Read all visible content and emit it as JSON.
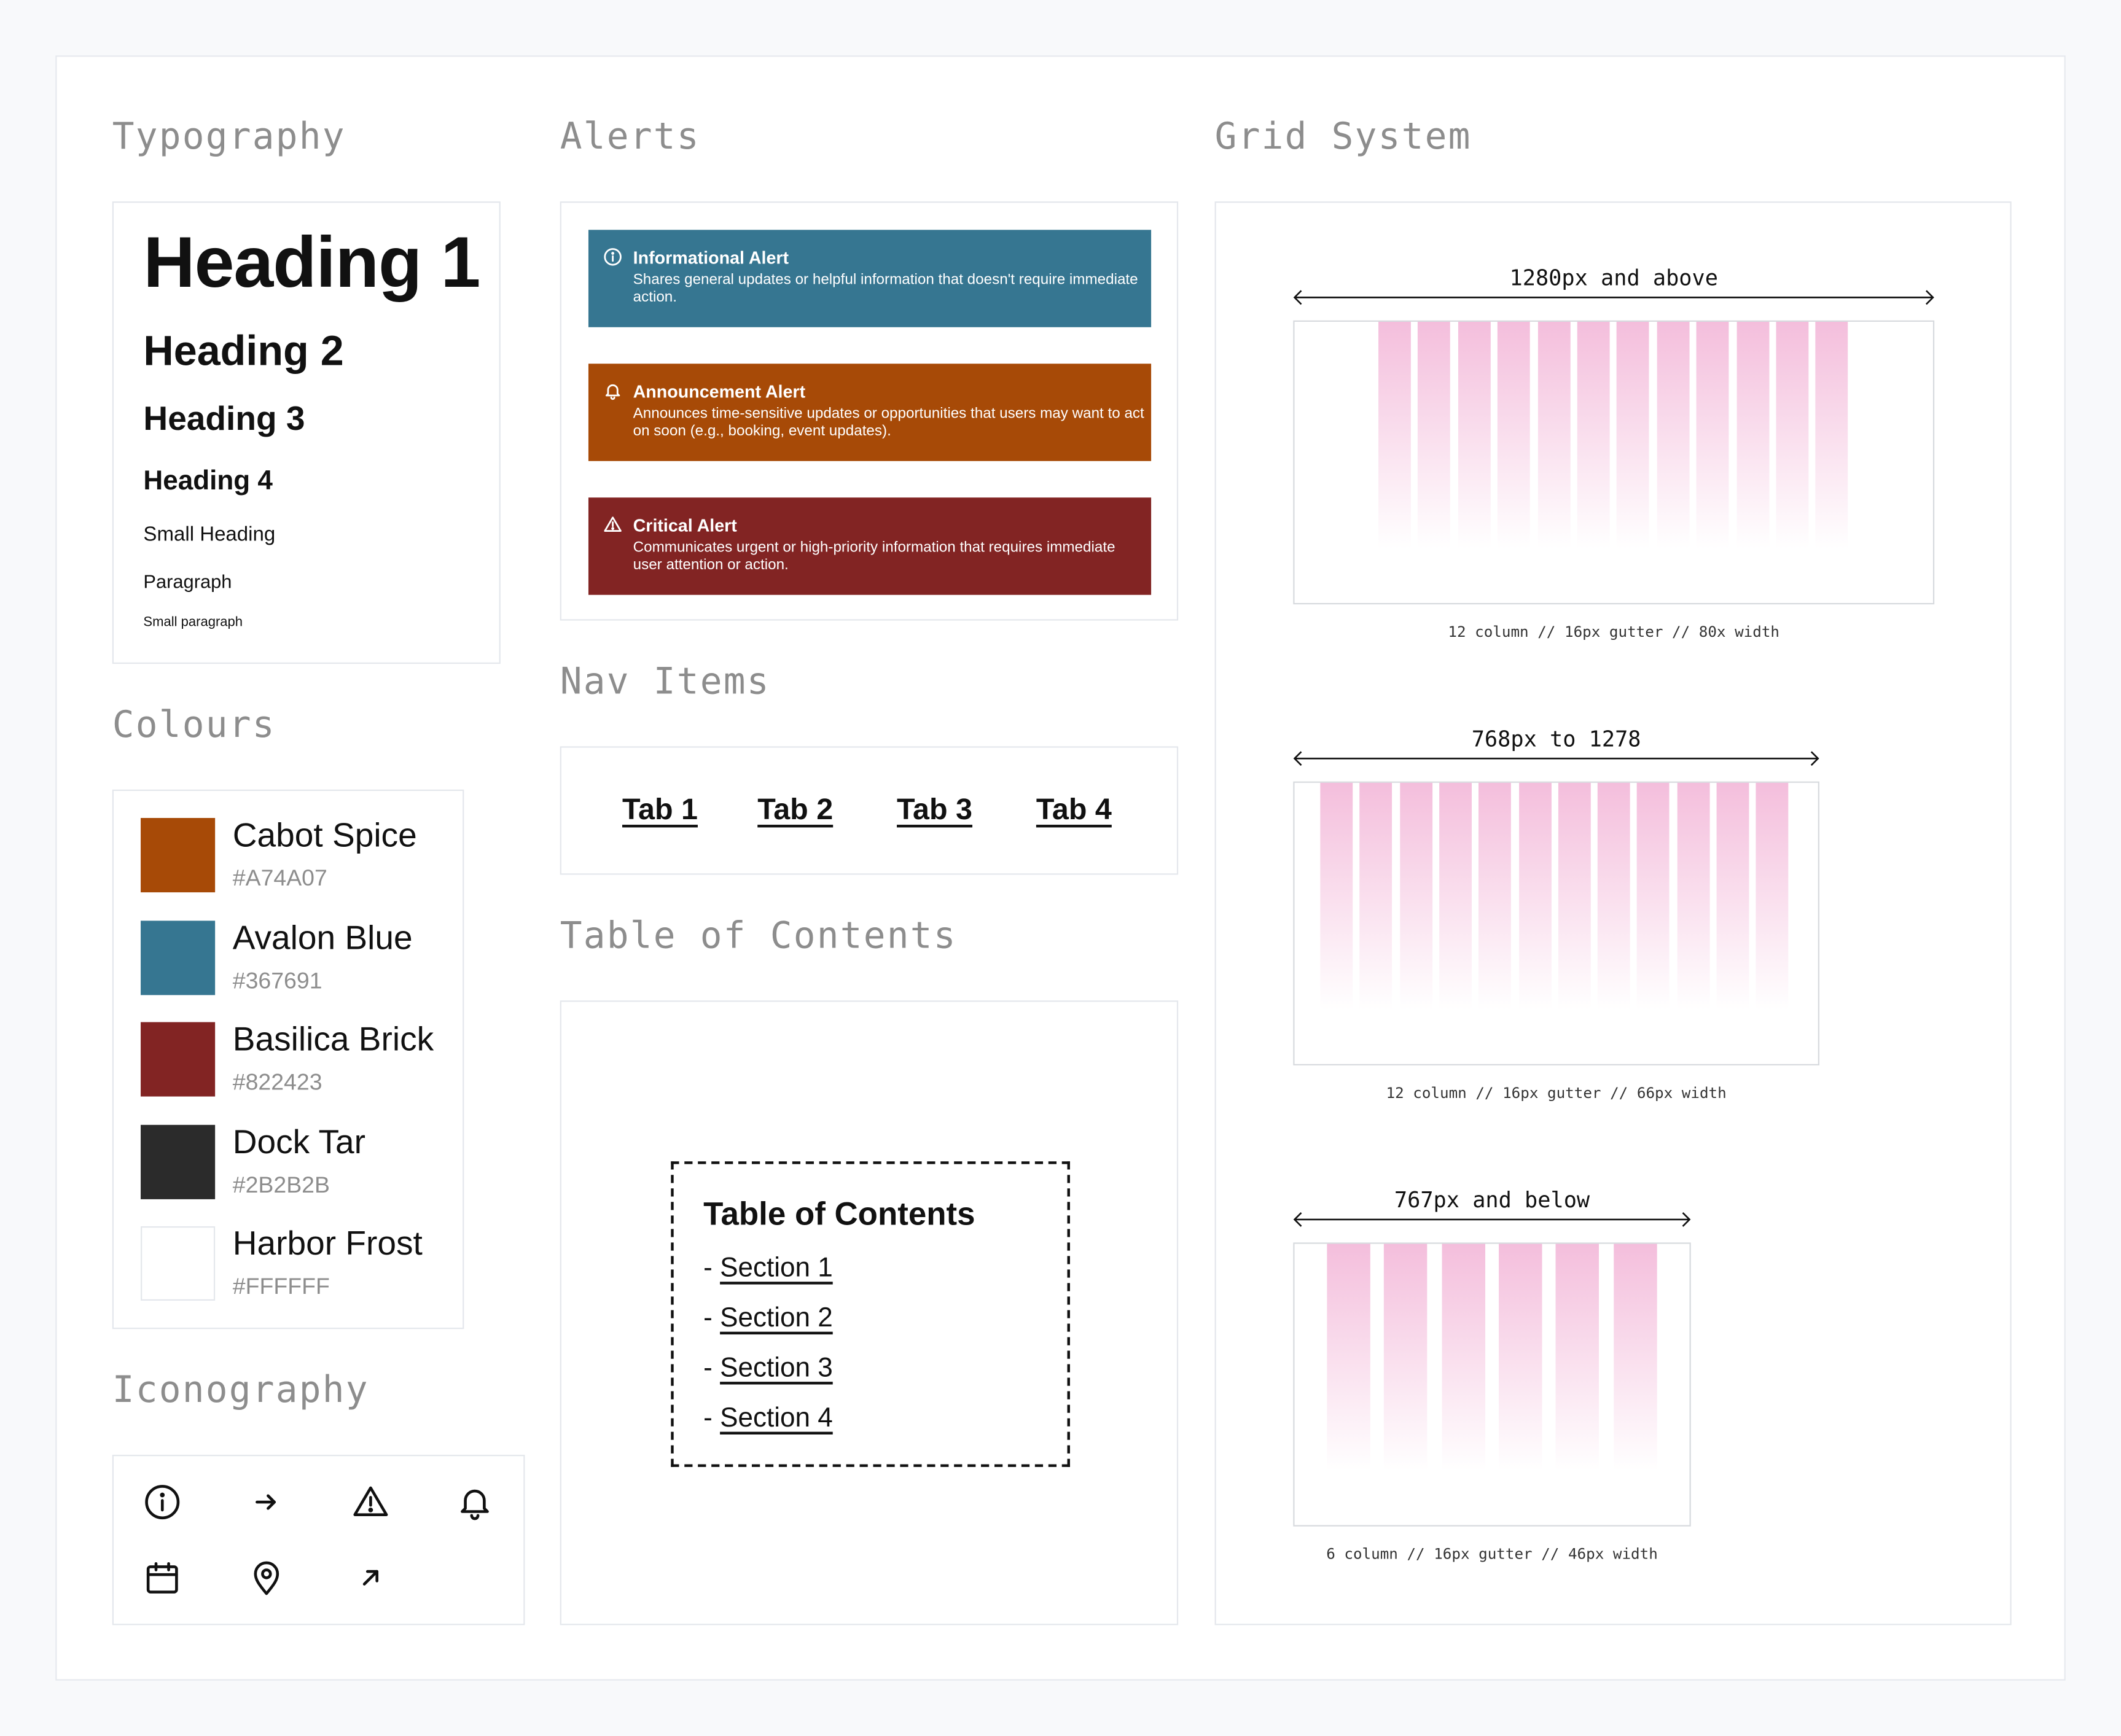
{
  "sections": {
    "typography": "Typography",
    "alerts": "Alerts",
    "grid_system": "Grid System",
    "colours": "Colours",
    "nav_items": "Nav Items",
    "table_of_contents": "Table of Contents",
    "iconography": "Iconography"
  },
  "typography": {
    "h1": "Heading 1",
    "h2": "Heading 2",
    "h3": "Heading 3",
    "h4": "Heading 4",
    "small_heading": "Small Heading",
    "paragraph": "Paragraph",
    "small_paragraph": "Small paragraph"
  },
  "colours": [
    {
      "name": "Cabot Spice",
      "hex": "#A74A07"
    },
    {
      "name": "Avalon Blue",
      "hex": "#367691"
    },
    {
      "name": "Basilica Brick",
      "hex": "#822423"
    },
    {
      "name": "Dock Tar",
      "hex": "#2B2B2B"
    },
    {
      "name": "Harbor Frost",
      "hex": "#FFFFFF"
    }
  ],
  "alerts": [
    {
      "title": "Informational Alert",
      "body": "Shares general updates or helpful information that doesn't require immediate action.",
      "color": "#367691",
      "icon": "info-icon"
    },
    {
      "title": "Announcement Alert",
      "body": "Announces time-sensitive updates or opportunities that users may want to act on soon (e.g., booking, event updates).",
      "color": "#A74A07",
      "icon": "bell-icon"
    },
    {
      "title": "Critical Alert",
      "body": "Communicates urgent or high-priority information that requires immediate user attention or action.",
      "color": "#822423",
      "icon": "warning-icon"
    }
  ],
  "nav": {
    "tabs": [
      "Tab 1",
      "Tab 2",
      "Tab 3",
      "Tab 4"
    ]
  },
  "toc": {
    "title": "Table of Contents",
    "bullet": "-",
    "items": [
      "Section 1",
      "Section 2",
      "Section 3",
      "Section 4"
    ]
  },
  "grid": [
    {
      "label": "1280px and above",
      "caption": "12 column // 16px gutter // 80x width",
      "columns": 12
    },
    {
      "label": "768px to 1278",
      "caption": "12 column // 16px gutter // 66px width",
      "columns": 12
    },
    {
      "label": "767px and below",
      "caption": "6 column // 16px gutter // 46px width",
      "columns": 6
    }
  ],
  "grid_column_color": "#F4BEDC",
  "icons": [
    "info-icon",
    "arrow-right-icon",
    "warning-icon",
    "bell-icon",
    "calendar-icon",
    "map-pin-icon",
    "arrow-up-right-icon"
  ]
}
